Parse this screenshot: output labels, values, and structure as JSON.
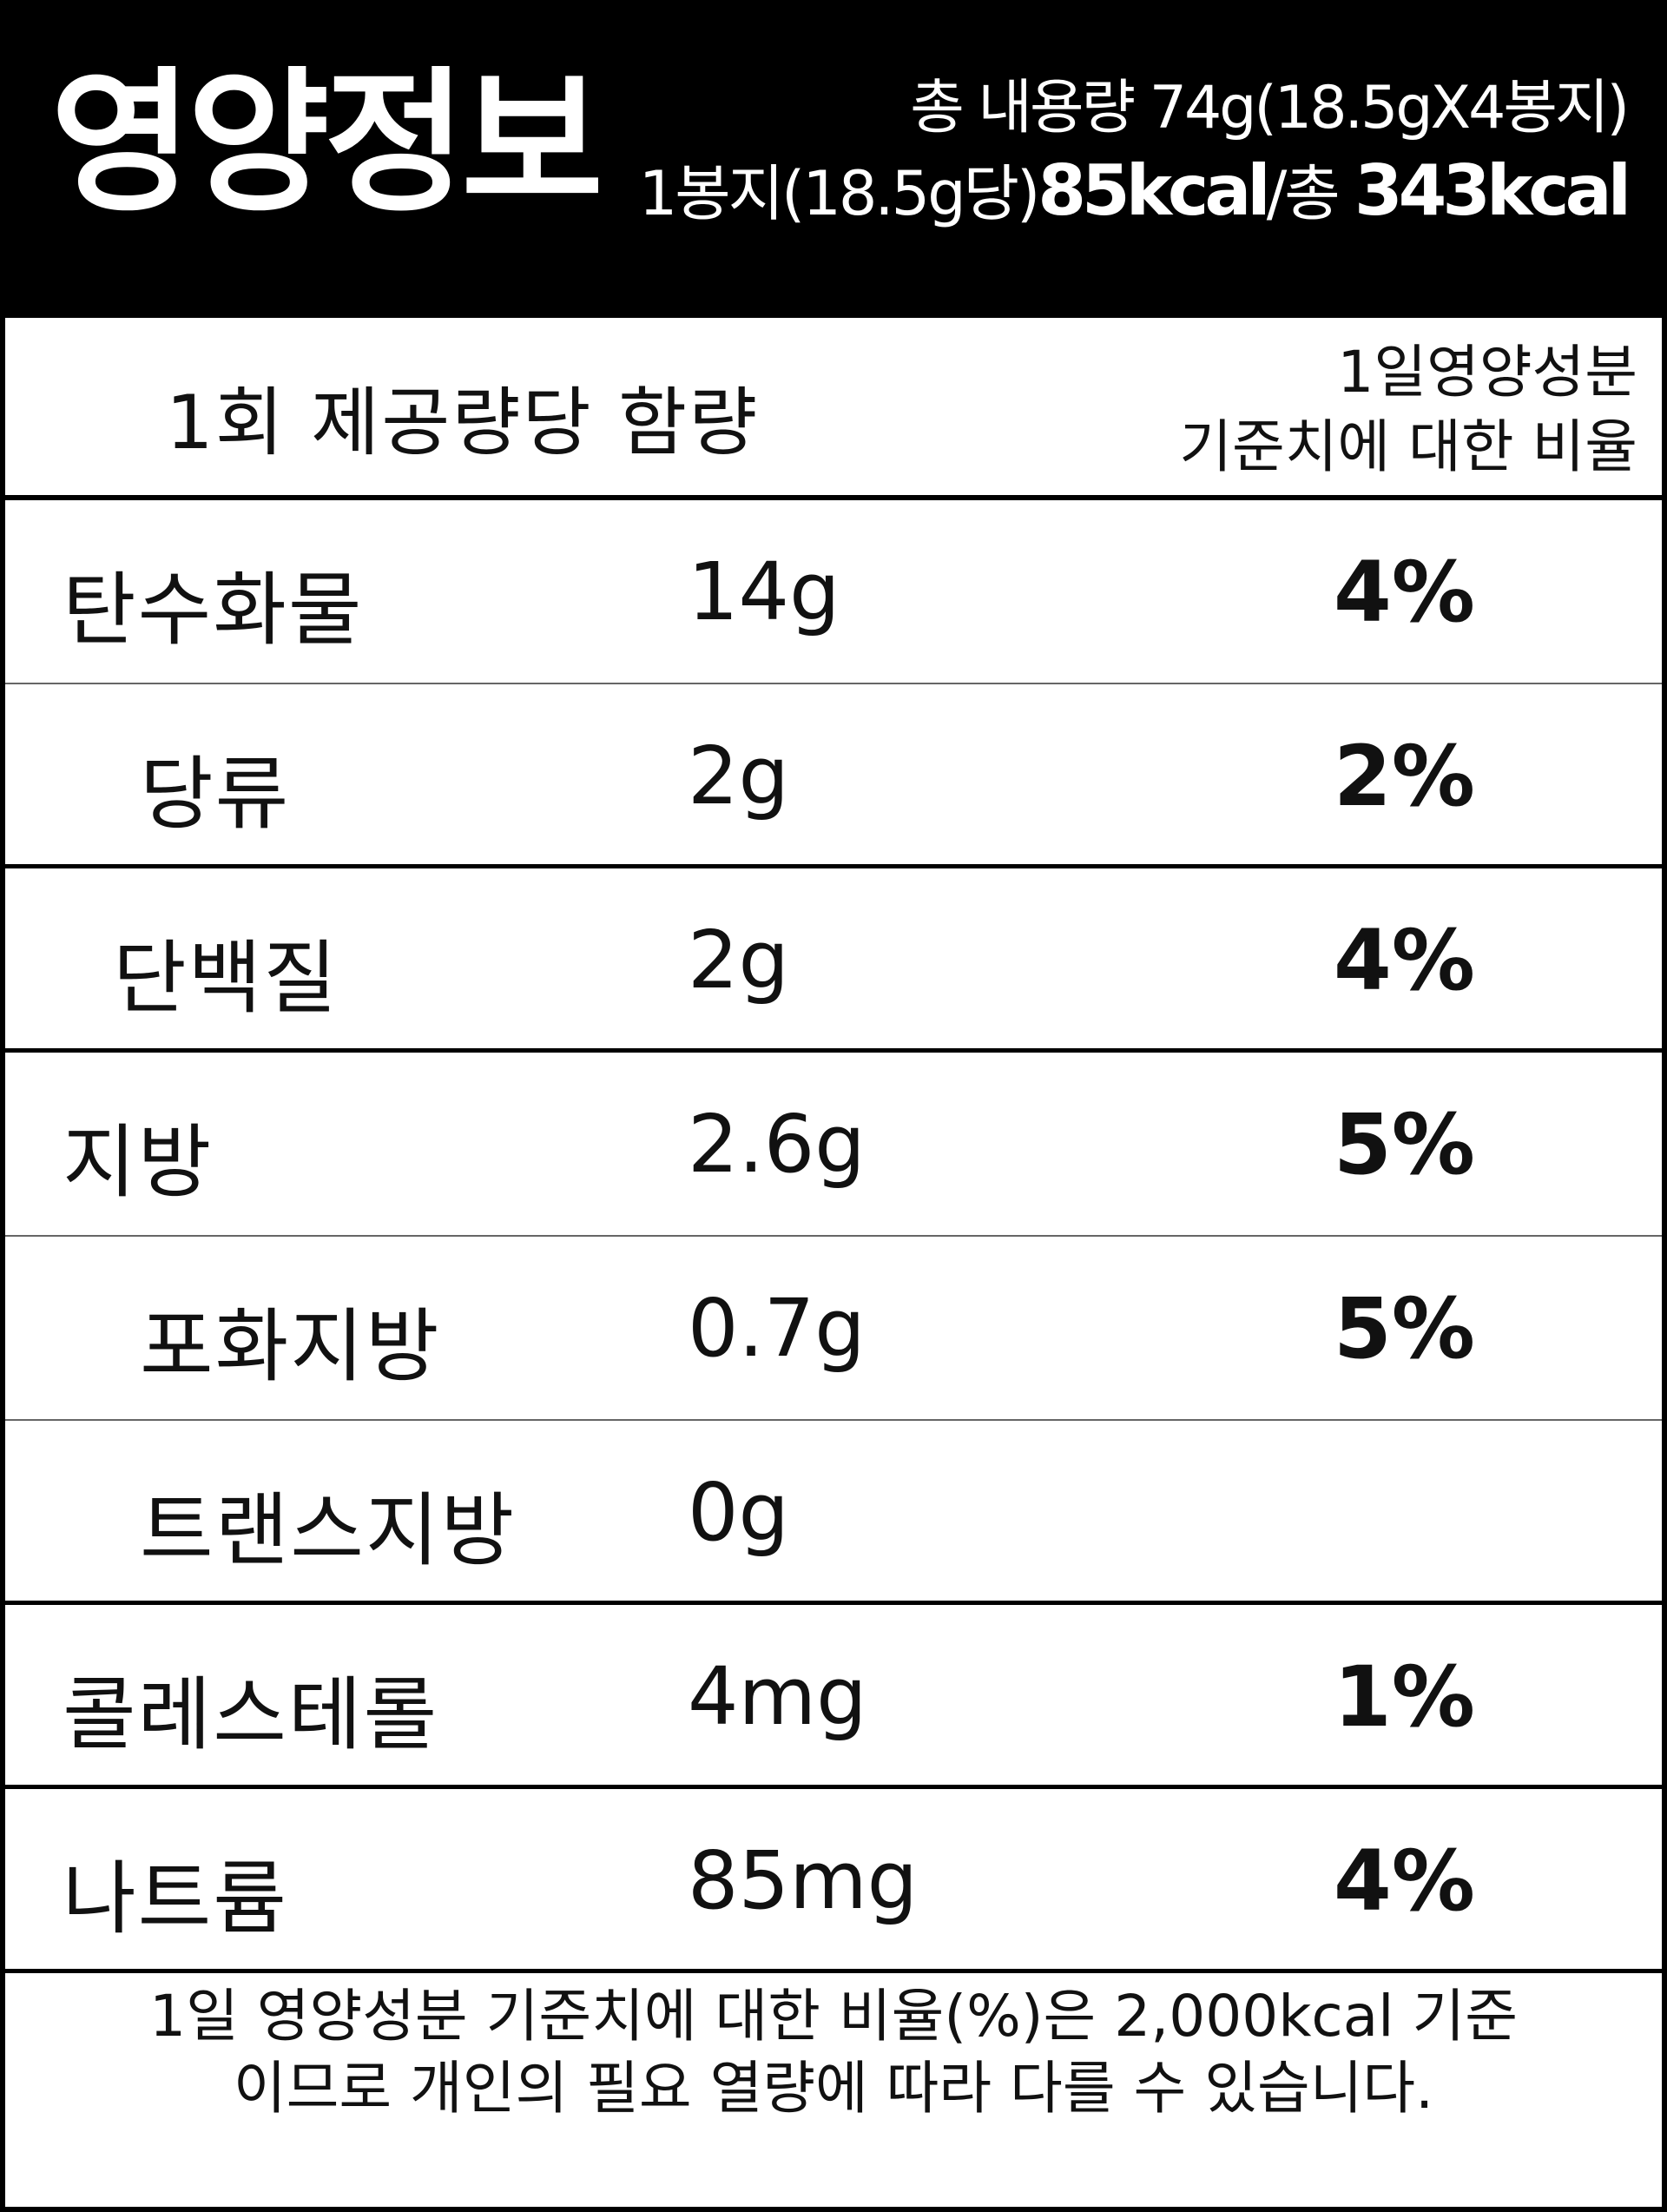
{
  "header": {
    "title": "영양정보",
    "total_content": "총 내용량 74g(18.5gX4봉지)",
    "per_pack_prefix": "1봉지(18.5g당)",
    "per_pack_kcal": "85kcal",
    "total_prefix": "/총 ",
    "total_kcal": "343kcal"
  },
  "columns": {
    "left": "1회 제공량당 함량",
    "right_line1": "1일영양성분",
    "right_line2": "기준치에 대한 비율"
  },
  "nutrients": [
    {
      "name": "탄수화물",
      "amount": "14g",
      "percent": "4%"
    },
    {
      "name": "당류",
      "amount": "2g",
      "percent": "2%"
    },
    {
      "name": "단백질",
      "amount": "2g",
      "percent": "4%"
    },
    {
      "name": "지방",
      "amount": "2.6g",
      "percent": "5%"
    },
    {
      "name": "포화지방",
      "amount": "0.7g",
      "percent": "5%"
    },
    {
      "name": "트랜스지방",
      "amount": "0g",
      "percent": ""
    },
    {
      "name": "콜레스테롤",
      "amount": "4mg",
      "percent": "1%"
    },
    {
      "name": "나트륨",
      "amount": "85mg",
      "percent": "4%"
    }
  ],
  "footnote": {
    "line1": "1일 영양성분 기준치에 대한 비율(%)은 2,000kcal 기준",
    "line2": "이므로 개인의 필요 열량에 따라 다를 수 있습니다."
  }
}
